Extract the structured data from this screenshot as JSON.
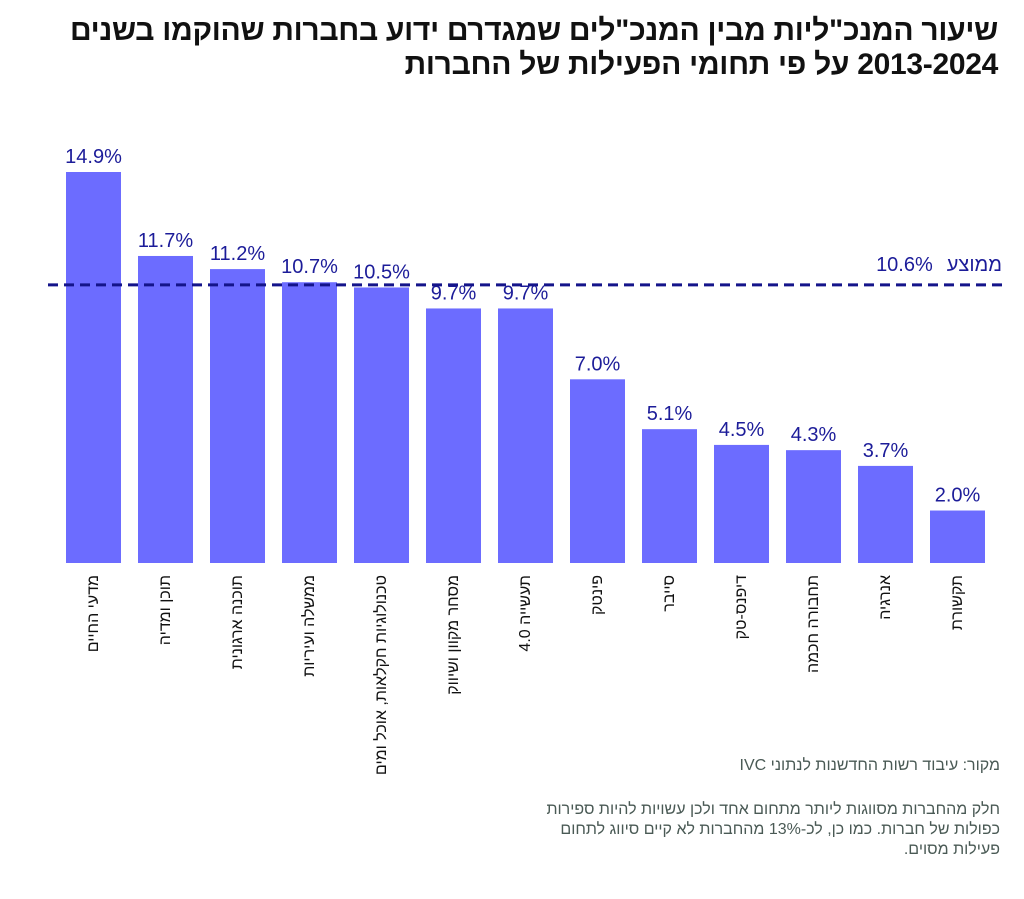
{
  "title": "שיעור המנכ\"ליות מבין המנכ\"לים שמגדרם ידוע בחברות שהוקמו בשנים 2013-2024 על פי תחומי הפעילות של החברות",
  "chart_data": {
    "type": "bar",
    "title": "שיעור המנכ\"ליות מבין המנכ\"לים שמגדרם ידוע בחברות שהוקמו בשנים 2013-2024 על פי תחומי הפעילות של החברות",
    "categories": [
      "מדעי החיים",
      "תוכן ומדיה",
      "תוכנה ארגונית",
      "ממשלה ועיריות",
      "טכנולוגיות חקלאות, אוכל ומים",
      "מסחר מקוון ושיווק",
      "תעשייה 4.0",
      "פינטק",
      "סייבר",
      "דיפנס-טק",
      "תחבורה חכמה",
      "אנרגיה",
      "תקשורת"
    ],
    "values": [
      14.9,
      11.7,
      11.2,
      10.7,
      10.5,
      9.7,
      9.7,
      7.0,
      5.1,
      4.5,
      4.3,
      3.7,
      2.0
    ],
    "value_labels": [
      "14.9%",
      "11.7%",
      "11.2%",
      "10.7%",
      "10.5%",
      "9.7%",
      "9.7%",
      "7.0%",
      "5.1%",
      "4.5%",
      "4.3%",
      "3.7%",
      "2.0%"
    ],
    "ylim": [
      0,
      14.9
    ],
    "grid": false,
    "average": {
      "label": "ממוצע",
      "value": 10.6,
      "value_label": "10.6%"
    },
    "xlabel": "",
    "ylabel": ""
  },
  "source": "מקור: עיבוד רשות החדשנות לנתוני IVC",
  "note": "חלק מהחברות מסווגות ליותר מתחום אחד ולכן עשויות להיות ספירות כפולות של חברות. כמו כן, לכ-13% מהחברות לא קיים סיווג לתחום פעילות מסוים.",
  "colors": {
    "bar": "#6c6cff",
    "label": "#1c1c99",
    "average_line": "#14148a"
  }
}
